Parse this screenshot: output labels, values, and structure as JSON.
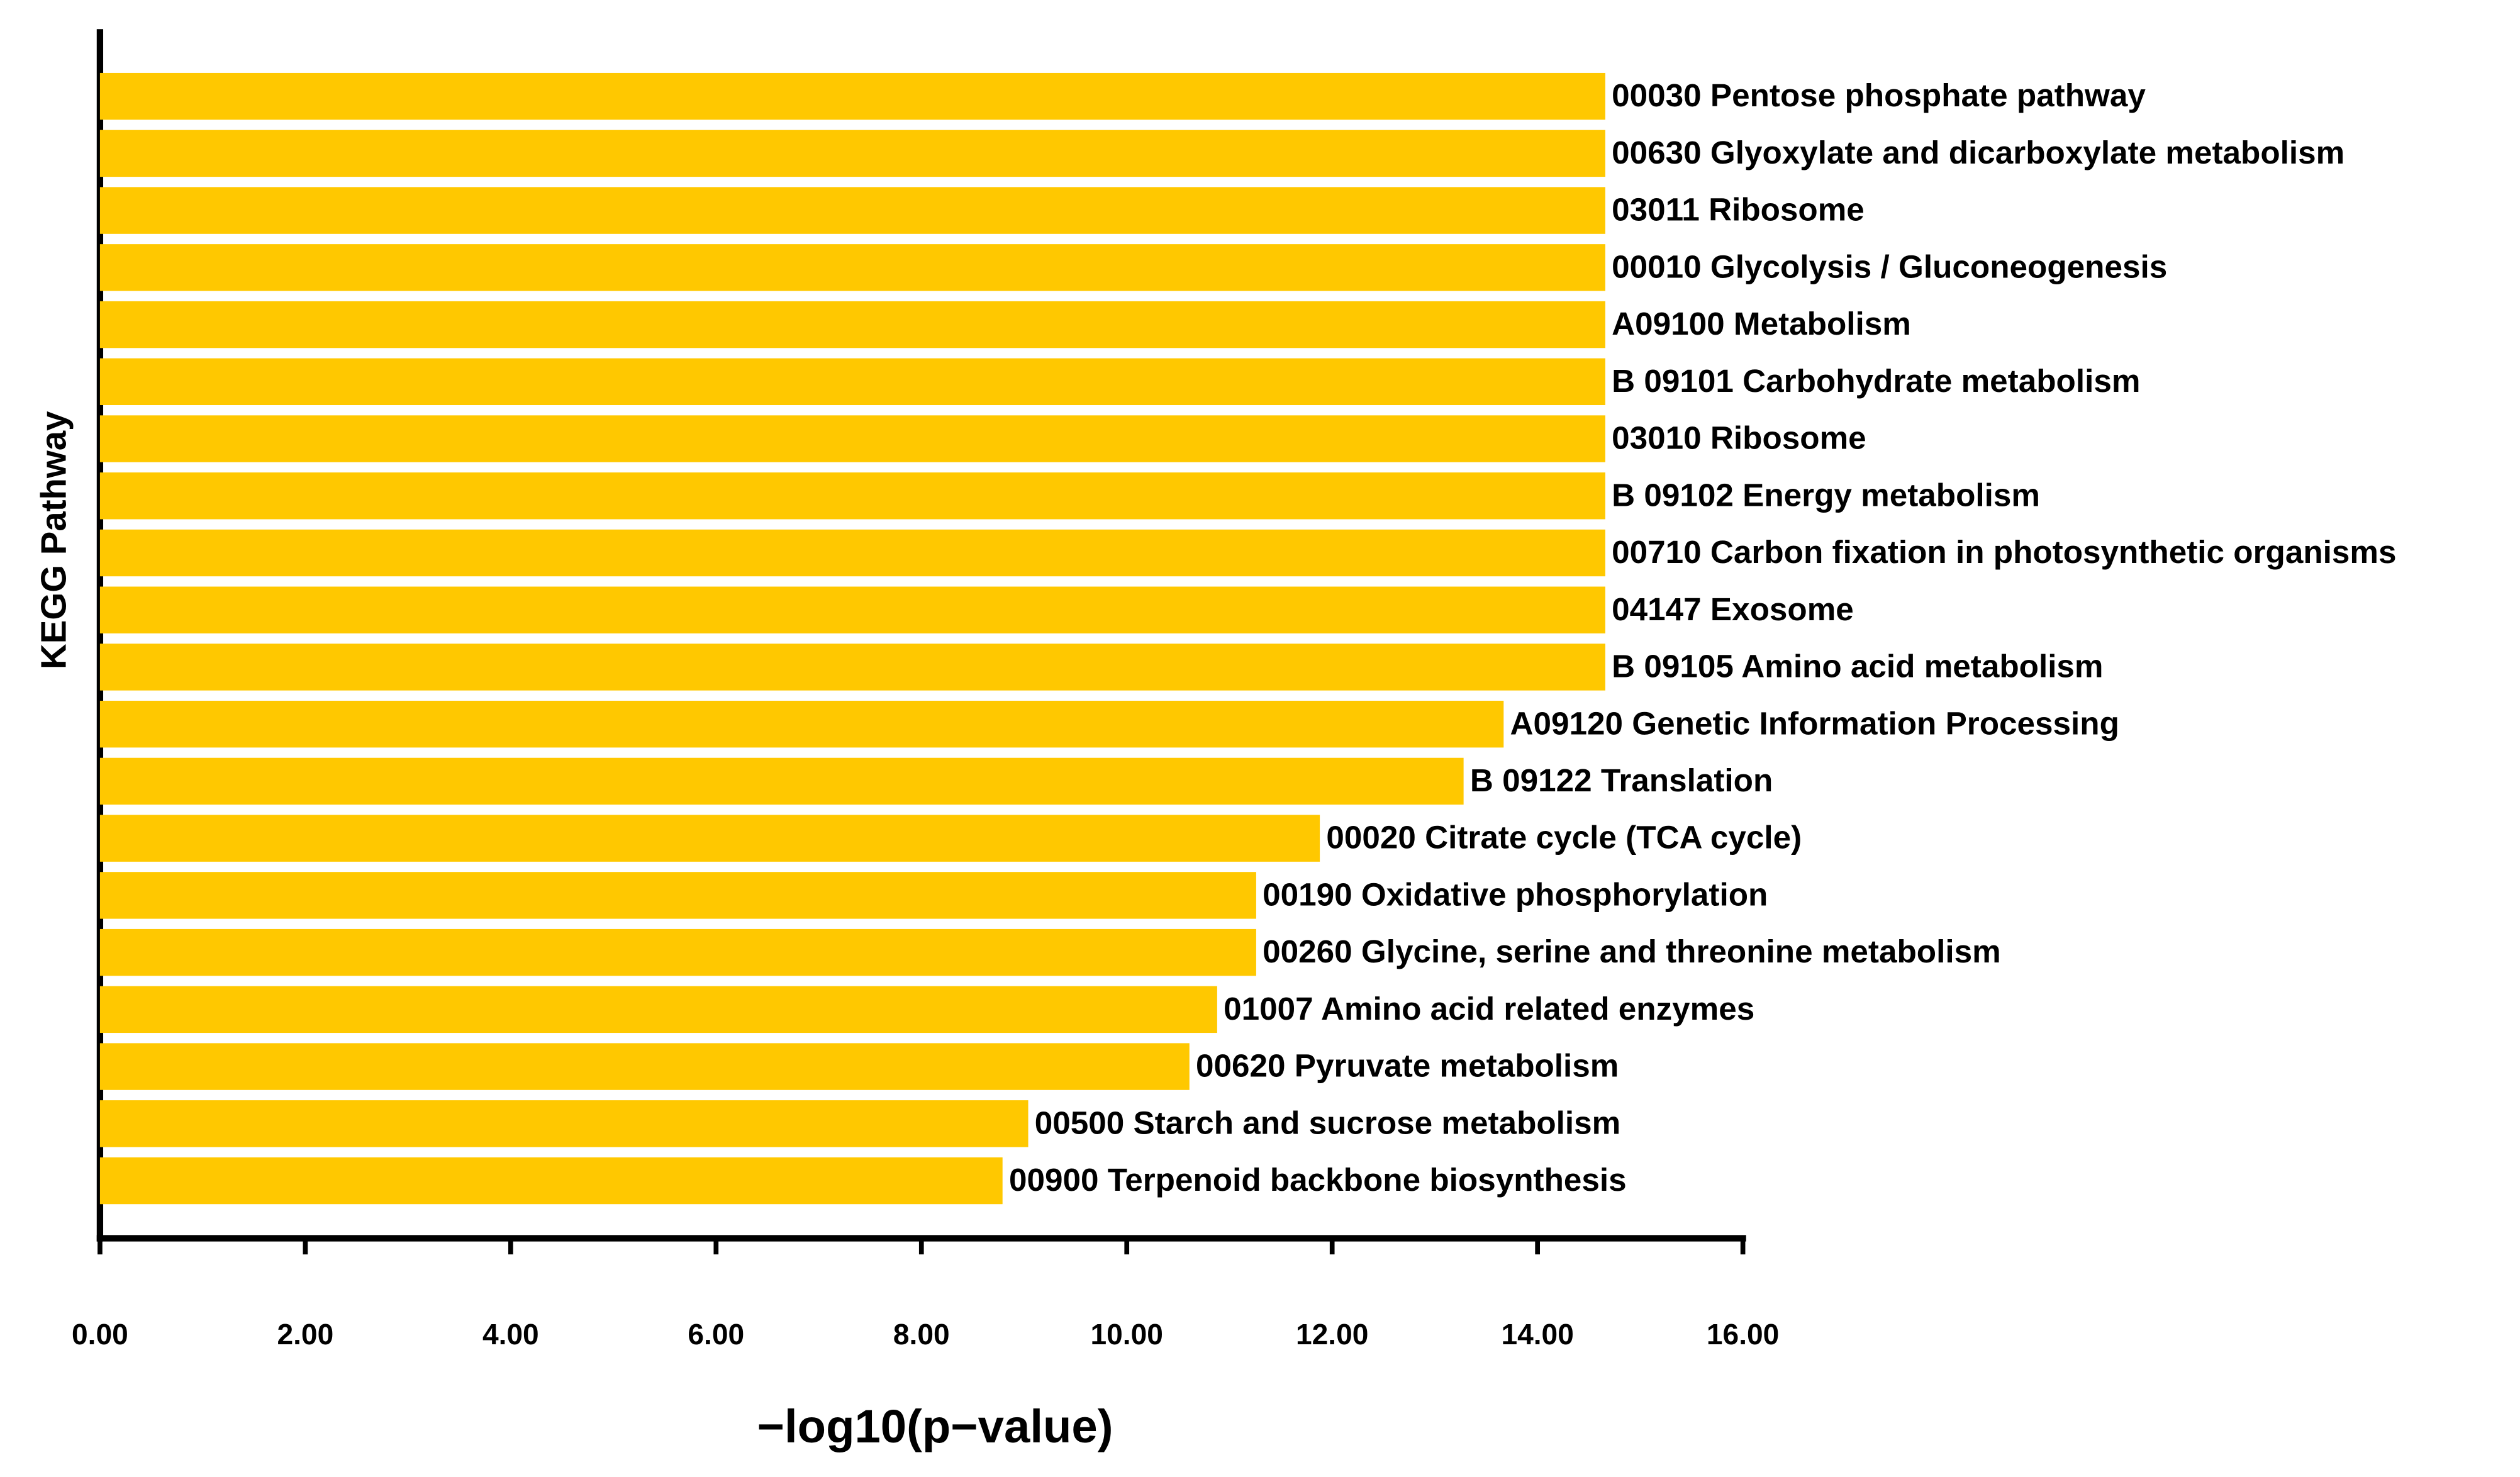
{
  "chart_data": {
    "type": "barh",
    "x_label": "−log10(p−value)",
    "y_label": "KEGG Pathway",
    "categories": [
      "00030 Pentose phosphate pathway",
      "00630 Glyoxylate and dicarboxylate metabolism",
      "03011 Ribosome",
      "00010 Glycolysis / Gluconeogenesis",
      "A09100 Metabolism",
      "B 09101 Carbohydrate metabolism",
      "03010 Ribosome",
      "B 09102 Energy metabolism",
      "00710 Carbon fixation in photosynthetic organisms",
      "04147 Exosome",
      "B 09105 Amino acid metabolism",
      "A09120 Genetic Information Processing",
      "B 09122 Translation",
      "00020 Citrate cycle (TCA cycle)",
      "00190 Oxidative phosphorylation",
      "00260 Glycine, serine and threonine metabolism",
      "01007 Amino acid related enzymes",
      "00620 Pyruvate metabolism",
      "00500 Starch and sucrose metabolism",
      "00900 Terpenoid backbone biosynthesis"
    ],
    "values": [
      14.66,
      14.66,
      14.66,
      14.66,
      14.66,
      14.66,
      14.66,
      14.66,
      14.66,
      14.66,
      14.66,
      13.67,
      13.28,
      11.88,
      11.26,
      11.26,
      10.88,
      10.61,
      9.04,
      8.79
    ],
    "color": "#ffc800",
    "xlim": [
      0,
      16
    ],
    "xticks": [
      {
        "value": 0,
        "label": "0.00"
      },
      {
        "value": 2,
        "label": "2.00"
      },
      {
        "value": 4,
        "label": "4.00"
      },
      {
        "value": 6,
        "label": "6.00"
      },
      {
        "value": 8,
        "label": "8.00"
      },
      {
        "value": 10,
        "label": "10.00"
      },
      {
        "value": 12,
        "label": "12.00"
      },
      {
        "value": 14,
        "label": "14.00"
      },
      {
        "value": 16,
        "label": "16.00"
      }
    ]
  }
}
